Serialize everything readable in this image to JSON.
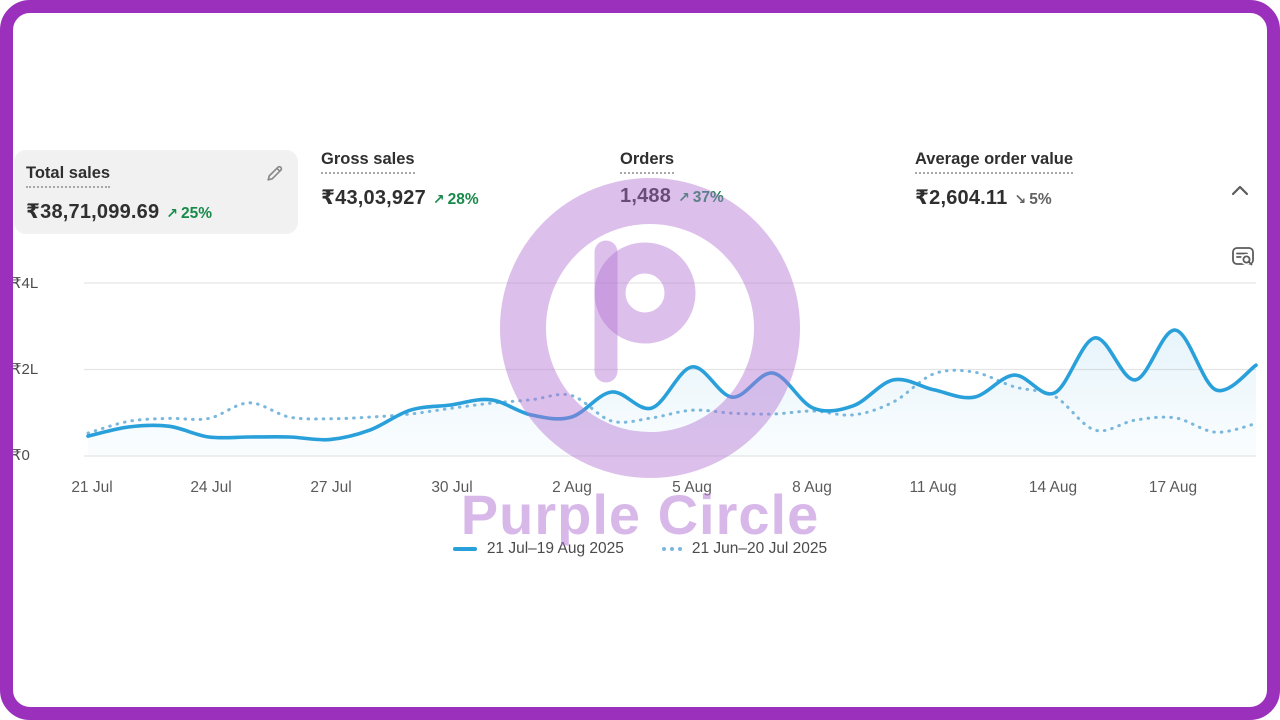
{
  "watermark": {
    "text": "Purple Circle",
    "logo": "p-circle-logo",
    "color": "#b174d3"
  },
  "frame": {
    "border_color": "#9a30bc"
  },
  "metrics": {
    "arrows": {
      "up": "↗",
      "down": "↘"
    },
    "colors": {
      "up": "#178a4a",
      "down": "#616161"
    },
    "cards": [
      {
        "label": "Total sales",
        "value": "₹38,71,099.69",
        "delta": "25%",
        "direction": "up",
        "selected": true,
        "editable": true
      },
      {
        "label": "Gross sales",
        "value": "₹43,03,927",
        "delta": "28%",
        "direction": "up",
        "selected": false
      },
      {
        "label": "Orders",
        "value": "1,488",
        "delta": "37%",
        "direction": "up",
        "selected": false
      },
      {
        "label": "Average order value",
        "value": "₹2,604.11",
        "delta": "5%",
        "direction": "down",
        "selected": false
      }
    ]
  },
  "icons": {
    "collapse": "chevron-up-icon",
    "report": "view-report-icon",
    "edit": "pencil-icon"
  },
  "chart_data": {
    "type": "line",
    "title": "Total sales over time",
    "unit": "INR lakh (L = 100,000)",
    "ylim": [
      0,
      4
    ],
    "grid": true,
    "legend_position": "bottom",
    "y_tick_labels": [
      "₹4L",
      "₹2L",
      "₹0"
    ],
    "x_tick_labels": [
      "21 Jul",
      "24 Jul",
      "27 Jul",
      "30 Jul",
      "2 Aug",
      "5 Aug",
      "8 Aug",
      "11 Aug",
      "14 Aug",
      "17 Aug"
    ],
    "x": [
      "21 Jul",
      "22 Jul",
      "23 Jul",
      "24 Jul",
      "25 Jul",
      "26 Jul",
      "27 Jul",
      "28 Jul",
      "29 Jul",
      "30 Jul",
      "31 Jul",
      "1 Aug",
      "2 Aug",
      "3 Aug",
      "4 Aug",
      "5 Aug",
      "6 Aug",
      "7 Aug",
      "8 Aug",
      "9 Aug",
      "10 Aug",
      "11 Aug",
      "12 Aug",
      "13 Aug",
      "14 Aug",
      "15 Aug",
      "16 Aug",
      "17 Aug",
      "18 Aug",
      "19 Aug"
    ],
    "series": [
      {
        "name": "21 Jul–19 Aug 2025",
        "style": "solid",
        "color": "#2aa0db",
        "values": [
          0.46,
          0.67,
          0.69,
          0.44,
          0.44,
          0.44,
          0.38,
          0.6,
          1.06,
          1.18,
          1.3,
          0.95,
          0.9,
          1.48,
          1.11,
          2.06,
          1.36,
          1.92,
          1.11,
          1.16,
          1.76,
          1.53,
          1.36,
          1.87,
          1.46,
          2.73,
          1.76,
          2.91,
          1.53,
          2.1
        ]
      },
      {
        "name": "21 Jun–20 Jul 2025",
        "style": "dotted",
        "color": "#79b7dc",
        "values": [
          0.53,
          0.8,
          0.87,
          0.87,
          1.23,
          0.9,
          0.86,
          0.9,
          0.97,
          1.1,
          1.22,
          1.3,
          1.4,
          0.81,
          0.88,
          1.06,
          0.99,
          0.97,
          1.04,
          0.95,
          1.25,
          1.9,
          1.94,
          1.6,
          1.38,
          0.6,
          0.83,
          0.88,
          0.55,
          0.75
        ]
      }
    ]
  }
}
